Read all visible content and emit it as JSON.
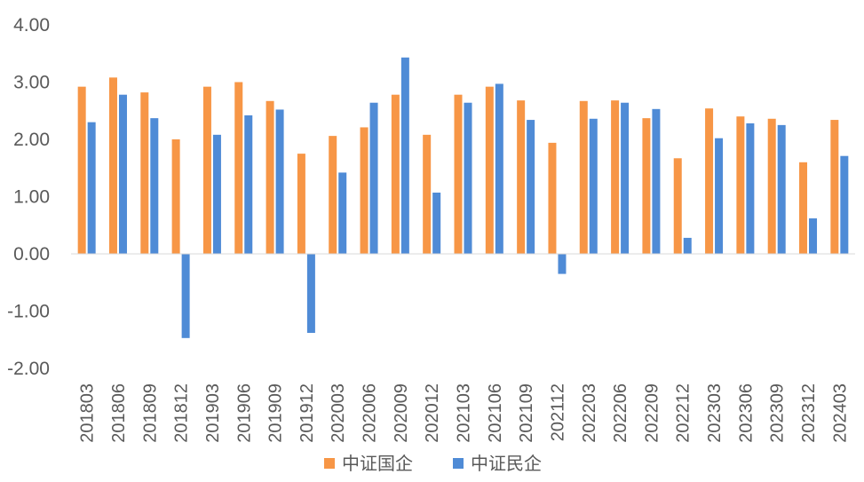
{
  "chart_data": {
    "type": "bar",
    "categories": [
      "201803",
      "201806",
      "201809",
      "201812",
      "201903",
      "201906",
      "201909",
      "201912",
      "202003",
      "202006",
      "202009",
      "202012",
      "202103",
      "202106",
      "202109",
      "202112",
      "202203",
      "202206",
      "202209",
      "202212",
      "202303",
      "202306",
      "202309",
      "202312",
      "202403"
    ],
    "series": [
      {
        "name": "中证国企",
        "color": "#F79646",
        "values": [
          2.92,
          3.08,
          2.82,
          2.0,
          2.92,
          3.0,
          2.67,
          1.75,
          2.06,
          2.21,
          2.78,
          2.08,
          2.78,
          2.92,
          2.68,
          1.94,
          2.67,
          2.68,
          2.37,
          1.67,
          2.54,
          2.4,
          2.36,
          1.6,
          2.34
        ]
      },
      {
        "name": "中证民企",
        "color": "#4F8BD6",
        "values": [
          2.3,
          2.78,
          2.37,
          -1.47,
          2.08,
          2.42,
          2.52,
          -1.38,
          1.42,
          2.64,
          3.43,
          1.07,
          2.64,
          2.97,
          2.34,
          -0.35,
          2.36,
          2.64,
          2.53,
          0.28,
          2.02,
          2.28,
          2.25,
          0.62,
          1.71
        ]
      }
    ],
    "y_ticks": [
      "4.00",
      "3.00",
      "2.00",
      "1.00",
      "0.00",
      "-1.00",
      "-2.00"
    ],
    "ylim": [
      -2,
      4
    ],
    "title": "",
    "xlabel": "",
    "ylabel": "",
    "grid": false,
    "legend_position": "bottom"
  }
}
